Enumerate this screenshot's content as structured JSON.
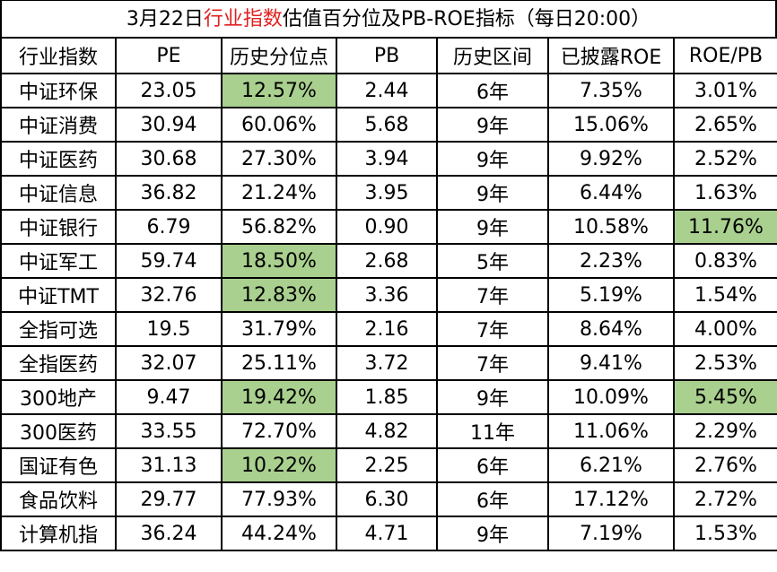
{
  "title": {
    "prefix": "3月22日",
    "highlight": "行业指数",
    "suffix": "估值百分位及PB-ROE指标（每日20:00）",
    "highlight_color": "#e02020"
  },
  "highlight_fill": "#a9d08e",
  "columns": [
    "行业指数",
    "PE",
    "历史分位点",
    "PB",
    "历史区间",
    "已披露ROE",
    "ROE/PB"
  ],
  "rows": [
    {
      "cells": [
        "中证环保",
        "23.05",
        "12.57%",
        "2.44",
        "6年",
        "7.35%",
        "3.01%"
      ],
      "highlight": [
        2
      ]
    },
    {
      "cells": [
        "中证消费",
        "30.94",
        "60.06%",
        "5.68",
        "9年",
        "15.06%",
        "2.65%"
      ],
      "highlight": []
    },
    {
      "cells": [
        "中证医药",
        "30.68",
        "27.30%",
        "3.94",
        "9年",
        "9.92%",
        "2.52%"
      ],
      "highlight": []
    },
    {
      "cells": [
        "中证信息",
        "36.82",
        "21.24%",
        "3.95",
        "9年",
        "6.44%",
        "1.63%"
      ],
      "highlight": []
    },
    {
      "cells": [
        "中证银行",
        "6.79",
        "56.82%",
        "0.90",
        "9年",
        "10.58%",
        "11.76%"
      ],
      "highlight": [
        6
      ]
    },
    {
      "cells": [
        "中证军工",
        "59.74",
        "18.50%",
        "2.68",
        "5年",
        "2.23%",
        "0.83%"
      ],
      "highlight": [
        2
      ]
    },
    {
      "cells": [
        "中证TMT",
        "32.76",
        "12.83%",
        "3.36",
        "7年",
        "5.19%",
        "1.54%"
      ],
      "highlight": [
        2
      ]
    },
    {
      "cells": [
        "全指可选",
        "19.5",
        "31.79%",
        "2.16",
        "7年",
        "8.64%",
        "4.00%"
      ],
      "highlight": []
    },
    {
      "cells": [
        "全指医药",
        "32.07",
        "25.11%",
        "3.72",
        "7年",
        "9.41%",
        "2.53%"
      ],
      "highlight": []
    },
    {
      "cells": [
        "300地产",
        "9.47",
        "19.42%",
        "1.85",
        "9年",
        "10.09%",
        "5.45%"
      ],
      "highlight": [
        2,
        6
      ]
    },
    {
      "cells": [
        "300医药",
        "33.55",
        "72.70%",
        "4.82",
        "11年",
        "11.06%",
        "2.29%"
      ],
      "highlight": []
    },
    {
      "cells": [
        "国证有色",
        "31.13",
        "10.22%",
        "2.25",
        "6年",
        "6.21%",
        "2.76%"
      ],
      "highlight": [
        2
      ]
    },
    {
      "cells": [
        "食品饮料",
        "29.77",
        "77.93%",
        "6.30",
        "6年",
        "17.12%",
        "2.72%"
      ],
      "highlight": []
    },
    {
      "cells": [
        "计算机指",
        "36.24",
        "44.24%",
        "4.71",
        "9年",
        "7.19%",
        "1.53%"
      ],
      "highlight": []
    }
  ]
}
